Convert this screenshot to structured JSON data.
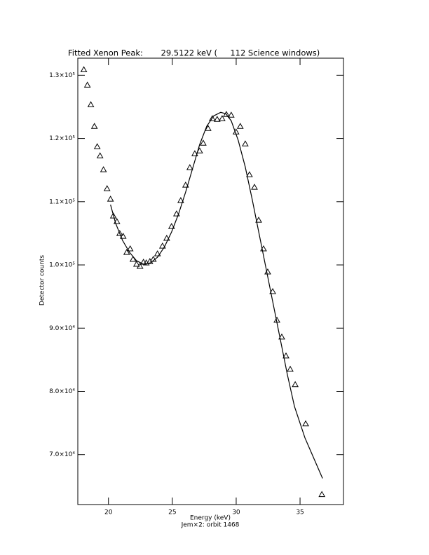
{
  "chart_data": {
    "type": "scatter",
    "title": "Fitted Xenon Peak:       29.5122 keV (     112 Science windows)",
    "x_label": "Energy (keV)",
    "subtitle": "Jem×2: orbit 1468",
    "y_label": "Detector counts",
    "xlim": [
      17.6,
      38.4
    ],
    "ylim": [
      62100,
      132700
    ],
    "xticks": [
      20,
      25,
      30,
      35
    ],
    "yticks": [
      {
        "value": 70000,
        "label": "7.0×10⁴"
      },
      {
        "value": 80000,
        "label": "8.0×10⁴"
      },
      {
        "value": 90000,
        "label": "9.0×10⁴"
      },
      {
        "value": 100000,
        "label": "1.0×10⁵"
      },
      {
        "value": 110000,
        "label": "1.1×10⁵"
      },
      {
        "value": 120000,
        "label": "1.2×10⁵"
      },
      {
        "value": 130000,
        "label": "1.3×10⁵"
      }
    ],
    "color": "#000000",
    "series": [
      {
        "style": "markers",
        "marker": "triangle",
        "x": [
          18.07,
          18.35,
          18.62,
          18.9,
          19.12,
          19.34,
          19.61,
          19.89,
          20.16,
          20.38,
          20.66,
          20.88,
          21.15,
          21.43,
          21.7,
          21.92,
          22.2,
          22.47,
          22.74,
          22.96,
          23.24,
          23.51,
          23.84,
          24.23,
          24.56,
          24.94,
          25.33,
          25.66,
          26.04,
          26.37,
          26.76,
          27.14,
          27.42,
          27.8,
          28.13,
          28.51,
          28.9,
          29.23,
          29.61,
          29.99,
          30.32,
          30.71,
          31.04,
          31.43,
          31.76,
          32.14,
          32.47,
          32.86,
          33.19,
          33.57,
          33.9,
          34.23,
          34.62,
          35.44,
          36.71
        ],
        "values": [
          130890,
          128450,
          125350,
          121920,
          118710,
          117270,
          115060,
          112070,
          110410,
          107750,
          106860,
          104980,
          104540,
          101990,
          102550,
          100890,
          100110,
          99780,
          100440,
          100330,
          100550,
          100890,
          101770,
          102990,
          104210,
          106090,
          108080,
          110190,
          112620,
          115390,
          117600,
          118040,
          119260,
          121590,
          123140,
          123030,
          123140,
          123800,
          123690,
          121030,
          121920,
          119150,
          114280,
          112290,
          107090,
          102550,
          98890,
          95790,
          91260,
          88600,
          85610,
          83510,
          81080,
          74880,
          63700
        ]
      },
      {
        "style": "line",
        "x": [
          20.16,
          20.55,
          21.1,
          21.65,
          22.2,
          22.74,
          23.29,
          23.84,
          24.39,
          24.94,
          25.49,
          26.04,
          26.59,
          27.14,
          27.69,
          28.24,
          28.79,
          29.18,
          29.61,
          30.16,
          30.71,
          31.26,
          31.81,
          32.36,
          32.91,
          33.46,
          34.01,
          34.56,
          35.38,
          36.76
        ],
        "values": [
          109530,
          106650,
          103880,
          101990,
          100660,
          100110,
          100330,
          101220,
          102880,
          105200,
          108080,
          111510,
          115270,
          119040,
          121920,
          123580,
          124130,
          123910,
          122800,
          119700,
          115500,
          110300,
          104760,
          99230,
          93690,
          88160,
          82620,
          77640,
          72660,
          66240
        ]
      }
    ]
  }
}
